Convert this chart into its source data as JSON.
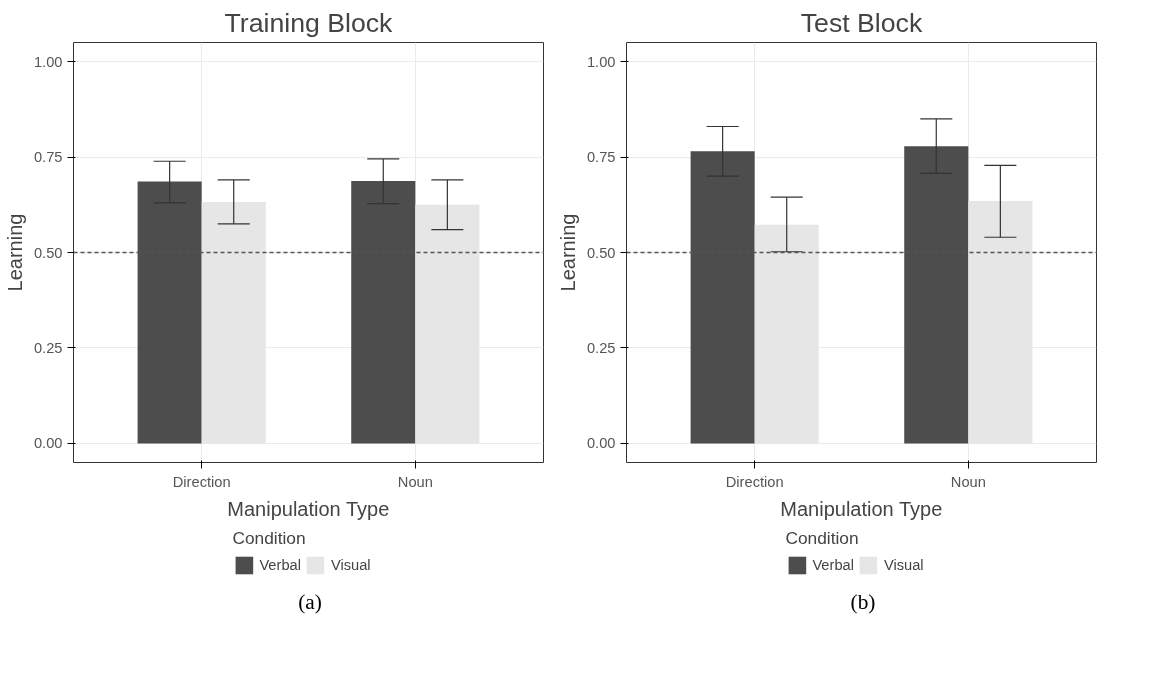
{
  "chart_data": [
    {
      "type": "bar",
      "title": "Training Block",
      "xlabel": "Manipulation Type",
      "ylabel": "Learning",
      "categories": [
        "Direction",
        "Noun"
      ],
      "series": [
        {
          "name": "Verbal",
          "color": "#4d4d4d",
          "values": [
            0.686,
            0.687
          ],
          "errors": [
            [
              0.63,
              0.739
            ],
            [
              0.628,
              0.745
            ]
          ]
        },
        {
          "name": "Visual",
          "color": "#e6e6e6",
          "values": [
            0.632,
            0.625
          ],
          "errors": [
            [
              0.575,
              0.69
            ],
            [
              0.56,
              0.69
            ]
          ]
        }
      ],
      "ylim": [
        -0.05,
        1.05
      ],
      "yticks": [
        {
          "value": 0,
          "label": "0.00"
        },
        {
          "value": 0.25,
          "label": "0.25"
        },
        {
          "value": 0.5,
          "label": "0.50"
        },
        {
          "value": 0.75,
          "label": "0.75"
        },
        {
          "value": 1,
          "label": "1.00"
        }
      ],
      "grid": true,
      "legend": "bottom",
      "legend_title": "Condition",
      "ref_lines": [
        {
          "axis": "y",
          "value": 0.5,
          "color": "#555555",
          "line_style": "dashed"
        }
      ],
      "annotations": [
        "(a)"
      ]
    },
    {
      "type": "bar",
      "title": "Test Block",
      "xlabel": "Manipulation Type",
      "ylabel": "Learning",
      "categories": [
        "Direction",
        "Noun"
      ],
      "series": [
        {
          "name": "Verbal",
          "color": "#4d4d4d",
          "values": [
            0.765,
            0.778
          ],
          "errors": [
            [
              0.7,
              0.83
            ],
            [
              0.707,
              0.85
            ]
          ]
        },
        {
          "name": "Visual",
          "color": "#e6e6e6",
          "values": [
            0.573,
            0.635
          ],
          "errors": [
            [
              0.502,
              0.645
            ],
            [
              0.54,
              0.728
            ]
          ]
        }
      ],
      "ylim": [
        -0.05,
        1.05
      ],
      "yticks": [
        {
          "value": 0,
          "label": "0.00"
        },
        {
          "value": 0.25,
          "label": "0.25"
        },
        {
          "value": 0.5,
          "label": "0.50"
        },
        {
          "value": 0.75,
          "label": "0.75"
        },
        {
          "value": 1,
          "label": "1.00"
        }
      ],
      "grid": true,
      "legend": "bottom",
      "legend_title": "Condition",
      "ref_lines": [
        {
          "axis": "y",
          "value": 0.5,
          "color": "#555555",
          "line_style": "dashed"
        }
      ],
      "annotations": [
        "(b)"
      ]
    }
  ]
}
